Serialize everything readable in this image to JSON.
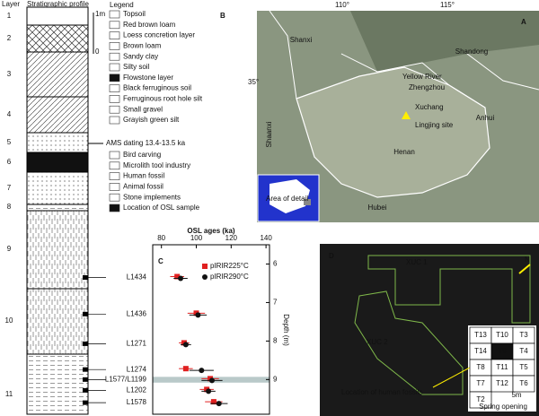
{
  "panel_a": {
    "label": "A",
    "lon_labels": [
      "110°",
      "115°"
    ],
    "lat_label": "35°",
    "regions": [
      "Shanxi",
      "Shandong",
      "Shaanxi",
      "Henan",
      "Anhui",
      "Hubei"
    ],
    "places": [
      "Yellow River",
      "Zhengzhou",
      "Xuchang",
      "Lingjing site"
    ],
    "inset_label": "Area of detail"
  },
  "panel_b": {
    "label": "B",
    "header": [
      "Layer",
      "Stratigraphic profile"
    ],
    "scale": [
      "1m",
      "0"
    ],
    "layers": [
      "1",
      "2",
      "3",
      "4",
      "5",
      "6",
      "7",
      "8",
      "9",
      "10",
      "11"
    ],
    "legend_title": "Legend",
    "legend": [
      "Topsoil",
      "Red brown loam",
      "Loess concretion layer",
      "Brown loam",
      "Sandy clay",
      "Silty soil",
      "Flowstone layer",
      "Black ferruginous soil",
      "Ferruginous root hole silt",
      "Small gravel",
      "Grayish green silt",
      "Bird carving",
      "Microlith tool industry",
      "Human fossil",
      "Animal fossil",
      "Stone implements",
      "Location of OSL sample"
    ],
    "ams_note": "AMS dating 13.4-13.5 ka"
  },
  "chart_data": {
    "type": "errorbar",
    "label": "C",
    "title": "OSL ages (ka)",
    "y_label": "Depth (m)",
    "categories": [
      "L1434",
      "L1436",
      "L1271",
      "L1274",
      "L1577/L1199",
      "L1202",
      "L1578"
    ],
    "depths": [
      6.35,
      7.3,
      8.07,
      8.74,
      9.0,
      9.28,
      9.6
    ],
    "series": [
      {
        "name": "pIRIR225°C",
        "color": "#e02020",
        "values": [
          89,
          100,
          93,
          94,
          108,
          106,
          110
        ],
        "errors": [
          4,
          5,
          3,
          4,
          5,
          4,
          5
        ]
      },
      {
        "name": "pIRIR290°C",
        "color": "#111111",
        "values": [
          91,
          101,
          94,
          103,
          109,
          107,
          113
        ],
        "errors": [
          4,
          5,
          3,
          7,
          6,
          4,
          5
        ]
      }
    ],
    "xlim": [
      75,
      142
    ],
    "xticks": [
      80,
      100,
      120,
      140
    ],
    "ylim": [
      5.5,
      9.9
    ],
    "yticks": [
      6,
      7,
      8,
      9
    ]
  },
  "panel_d": {
    "label": "D",
    "areas": [
      "XUC 1",
      "XUC 2"
    ],
    "north": "N",
    "caption": "Location of human fossils",
    "grid": [
      "T13",
      "T10",
      "T3",
      "T14",
      "T9",
      "T4",
      "T8",
      "T11",
      "T5",
      "T7",
      "T12",
      "T6",
      "T2"
    ],
    "scale": "5m",
    "spring": "Spring opening"
  }
}
